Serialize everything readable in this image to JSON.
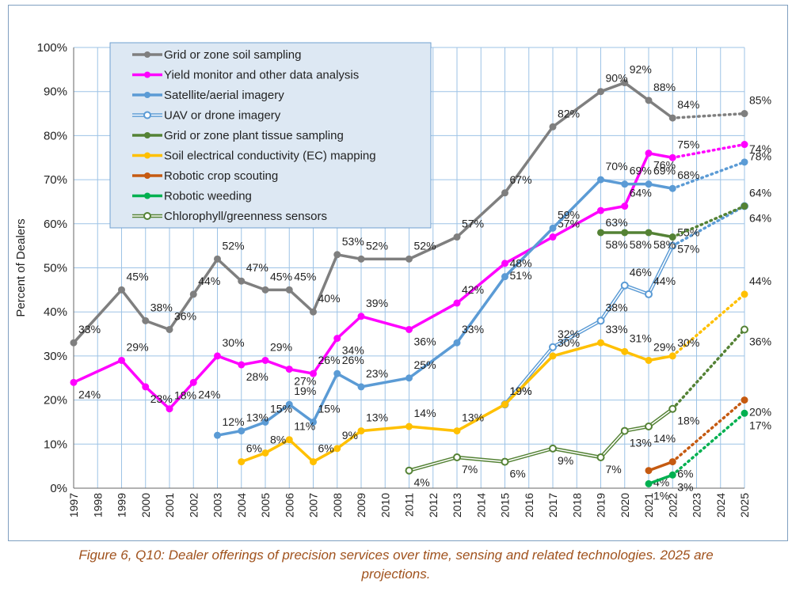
{
  "chart_data": {
    "type": "line",
    "ylabel": "Percent of Dealers",
    "ylim": [
      0,
      100
    ],
    "yticks": [
      "0%",
      "10%",
      "20%",
      "30%",
      "40%",
      "50%",
      "60%",
      "70%",
      "80%",
      "90%",
      "100%"
    ],
    "x": [
      "1997",
      "1998",
      "1999",
      "2000",
      "2001",
      "2002",
      "2003",
      "2004",
      "2005",
      "2006",
      "2007",
      "2008",
      "2009",
      "2010",
      "2011",
      "2012",
      "2013",
      "2014",
      "2015",
      "2016",
      "2017",
      "2018",
      "2019",
      "2020",
      "2021",
      "2022",
      "2023",
      "2024",
      "2025"
    ],
    "grid": true,
    "legend_position": "top-left",
    "projection_year": "2025",
    "series": [
      {
        "name": "Grid or zone soil sampling",
        "color": "#7f7f7f",
        "style": "solid",
        "points": [
          [
            1997,
            33
          ],
          [
            1999,
            45
          ],
          [
            2000,
            38
          ],
          [
            2001,
            36
          ],
          [
            2002,
            44
          ],
          [
            2003,
            52
          ],
          [
            2004,
            47
          ],
          [
            2005,
            45
          ],
          [
            2006,
            45
          ],
          [
            2007,
            40
          ],
          [
            2008,
            53
          ],
          [
            2009,
            52
          ],
          [
            2011,
            52
          ],
          [
            2013,
            57
          ],
          [
            2015,
            67
          ],
          [
            2017,
            82
          ],
          [
            2019,
            90
          ],
          [
            2020,
            92
          ],
          [
            2021,
            88
          ],
          [
            2022,
            84
          ]
        ],
        "projection": [
          [
            2022,
            84
          ],
          [
            2025,
            85
          ]
        ],
        "labels": [
          "33%",
          "45%",
          "38%",
          "36%",
          "44%",
          "52%",
          "47%",
          "45%",
          "45%",
          "40%",
          "53%",
          "52%",
          "52%",
          "57%",
          "67%",
          "82%",
          "90%",
          "92%",
          "88%",
          "84%",
          "85%"
        ]
      },
      {
        "name": "Yield monitor and other data analysis",
        "color": "#ff00ff",
        "style": "solid",
        "points": [
          [
            1997,
            24
          ],
          [
            1999,
            29
          ],
          [
            2000,
            23
          ],
          [
            2001,
            18
          ],
          [
            2002,
            24
          ],
          [
            2003,
            30
          ],
          [
            2004,
            28
          ],
          [
            2005,
            29
          ],
          [
            2006,
            27
          ],
          [
            2007,
            26
          ],
          [
            2008,
            34
          ],
          [
            2009,
            39
          ],
          [
            2011,
            36
          ],
          [
            2013,
            42
          ],
          [
            2015,
            51
          ],
          [
            2017,
            57
          ],
          [
            2019,
            63
          ],
          [
            2020,
            64
          ],
          [
            2021,
            76
          ],
          [
            2022,
            75
          ]
        ],
        "projection": [
          [
            2022,
            75
          ],
          [
            2025,
            78
          ]
        ],
        "labels": [
          "24%",
          "29%",
          "23%",
          "18%",
          "24%",
          "30%",
          "28%",
          "29%",
          "27%",
          "26%",
          "34%",
          "39%",
          "36%",
          "42%",
          "51%",
          "57%",
          "63%",
          "64%",
          "76%",
          "75%",
          "78%"
        ]
      },
      {
        "name": "Satellite/aerial imagery",
        "color": "#5b9bd5",
        "style": "solid",
        "points": [
          [
            2003,
            12
          ],
          [
            2004,
            13
          ],
          [
            2005,
            15
          ],
          [
            2006,
            19
          ],
          [
            2007,
            15
          ],
          [
            2008,
            26
          ],
          [
            2009,
            23
          ],
          [
            2011,
            25
          ],
          [
            2013,
            33
          ],
          [
            2015,
            48
          ],
          [
            2017,
            59
          ],
          [
            2019,
            70
          ],
          [
            2020,
            69
          ],
          [
            2021,
            69
          ],
          [
            2022,
            68
          ]
        ],
        "projection": [
          [
            2022,
            68
          ],
          [
            2025,
            74
          ]
        ],
        "labels": [
          "12%",
          "13%",
          "15%",
          "19%",
          "15%",
          "26%",
          "23%",
          "25%",
          "33%",
          "48%",
          "59%",
          "70%",
          "69%",
          "69%",
          "68%",
          "74%"
        ]
      },
      {
        "name": "UAV or drone imagery",
        "color": "#5b9bd5",
        "style": "double",
        "points": [
          [
            2015,
            19
          ],
          [
            2017,
            32
          ],
          [
            2019,
            38
          ],
          [
            2020,
            46
          ],
          [
            2021,
            44
          ],
          [
            2022,
            55
          ]
        ],
        "projection": [
          [
            2022,
            55
          ],
          [
            2025,
            64
          ]
        ],
        "labels": [
          "19%",
          "32%",
          "38%",
          "46%",
          "44%",
          "55%",
          "64%"
        ]
      },
      {
        "name": "Grid or zone plant tissue sampling",
        "color": "#548235",
        "style": "solid",
        "points": [
          [
            2019,
            58
          ],
          [
            2020,
            58
          ],
          [
            2021,
            58
          ],
          [
            2022,
            57
          ]
        ],
        "projection": [
          [
            2022,
            57
          ],
          [
            2025,
            64
          ]
        ],
        "labels": [
          "58%",
          "58%",
          "58%",
          "57%",
          "64%"
        ]
      },
      {
        "name": "Soil electrical conductivity (EC) mapping",
        "color": "#ffc000",
        "style": "solid",
        "points": [
          [
            2004,
            6
          ],
          [
            2005,
            8
          ],
          [
            2006,
            11
          ],
          [
            2007,
            6
          ],
          [
            2008,
            9
          ],
          [
            2009,
            13
          ],
          [
            2011,
            14
          ],
          [
            2013,
            13
          ],
          [
            2015,
            19
          ],
          [
            2017,
            30
          ],
          [
            2019,
            33
          ],
          [
            2020,
            31
          ],
          [
            2021,
            29
          ],
          [
            2022,
            30
          ]
        ],
        "projection": [
          [
            2022,
            30
          ],
          [
            2025,
            44
          ]
        ],
        "labels": [
          "6%",
          "8%",
          "11%",
          "6%",
          "9%",
          "13%",
          "14%",
          "13%",
          "19%",
          "30%",
          "33%",
          "31%",
          "29%",
          "30%",
          "44%"
        ]
      },
      {
        "name": "Robotic crop scouting",
        "color": "#c55a11",
        "style": "solid",
        "points": [
          [
            2021,
            4
          ],
          [
            2022,
            6
          ]
        ],
        "projection": [
          [
            2022,
            6
          ],
          [
            2025,
            20
          ]
        ],
        "labels": [
          "4%",
          "6%",
          "20%"
        ]
      },
      {
        "name": "Robotic weeding",
        "color": "#00b050",
        "style": "solid",
        "points": [
          [
            2021,
            1
          ],
          [
            2022,
            3
          ]
        ],
        "projection": [
          [
            2022,
            3
          ],
          [
            2025,
            17
          ]
        ],
        "labels": [
          "1%",
          "3%",
          "17%"
        ]
      },
      {
        "name": "Chlorophyll/greenness sensors",
        "color": "#548235",
        "style": "double",
        "points": [
          [
            2011,
            4
          ],
          [
            2013,
            7
          ],
          [
            2015,
            6
          ],
          [
            2017,
            9
          ],
          [
            2019,
            7
          ],
          [
            2020,
            13
          ],
          [
            2021,
            14
          ],
          [
            2022,
            18
          ]
        ],
        "projection": [
          [
            2022,
            18
          ],
          [
            2025,
            36
          ]
        ],
        "labels": [
          "4%",
          "7%",
          "6%",
          "9%",
          "7%",
          "13%",
          "14%",
          "18%",
          "36%"
        ]
      }
    ]
  },
  "caption": {
    "line1": "Figure 6, Q10: Dealer offerings of precision services over time, sensing and related technologies.  2025 are",
    "line2": "projections."
  }
}
